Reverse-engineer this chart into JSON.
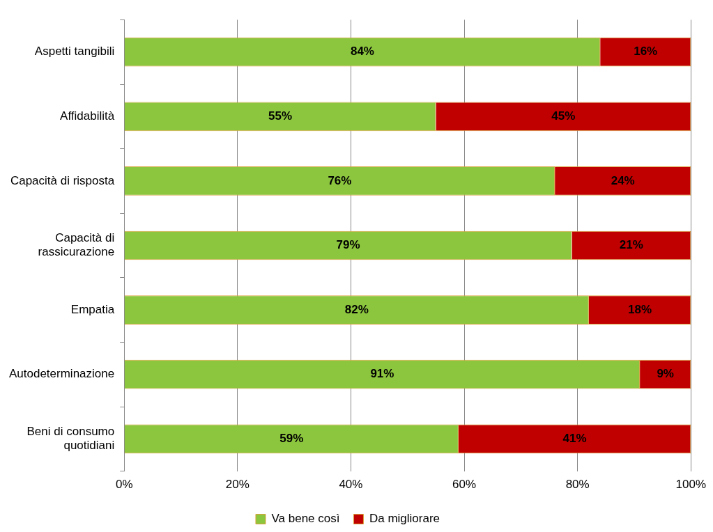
{
  "chart_data": {
    "type": "bar",
    "orientation": "horizontal",
    "stacked": true,
    "categories": [
      "Aspetti tangibili",
      "Affidabilità",
      "Capacità di risposta",
      "Capacità di rassicurazione",
      "Empatia",
      "Autodeterminazione",
      "Beni di consumo quotidiani"
    ],
    "series": [
      {
        "name": "Va bene così",
        "color": "#8cc63e",
        "values": [
          84,
          55,
          76,
          79,
          82,
          91,
          59
        ],
        "value_labels": [
          "84%",
          "55%",
          "76%",
          "79%",
          "82%",
          "91%",
          "59%"
        ]
      },
      {
        "name": "Da migliorare",
        "color": "#c00000",
        "values": [
          16,
          45,
          24,
          21,
          18,
          9,
          41
        ],
        "value_labels": [
          "16%",
          "45%",
          "24%",
          "21%",
          "18%",
          "9%",
          "41%"
        ]
      }
    ],
    "xlim": [
      0,
      100
    ],
    "xticks": [
      {
        "value": 0,
        "label": "0%"
      },
      {
        "value": 20,
        "label": "20%"
      },
      {
        "value": 40,
        "label": "40%"
      },
      {
        "value": 60,
        "label": "60%"
      },
      {
        "value": 80,
        "label": "80%"
      },
      {
        "value": 100,
        "label": "100%"
      }
    ],
    "grid": "x",
    "legend": "bottom"
  }
}
